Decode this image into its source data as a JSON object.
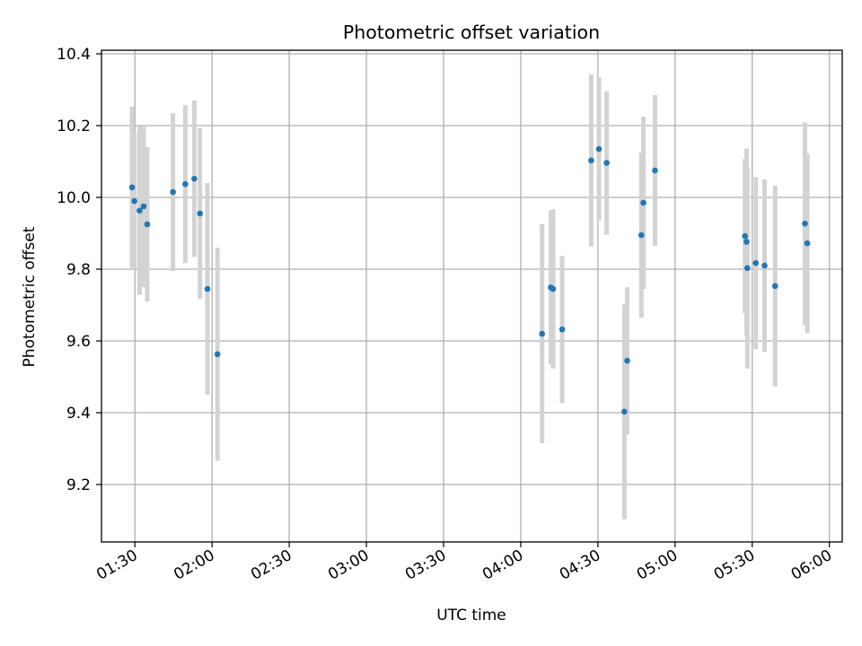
{
  "chart_data": {
    "type": "scatter",
    "title": "Photometric offset variation",
    "xlabel": "UTC time",
    "ylabel": "Photometric offset",
    "grid": true,
    "x_ticks": [
      "01:30",
      "02:00",
      "02:30",
      "03:00",
      "03:30",
      "04:00",
      "04:30",
      "05:00",
      "05:30",
      "06:00"
    ],
    "y_ticks": [
      "9.2",
      "9.4",
      "9.6",
      "9.8",
      "10.0",
      "10.2",
      "10.4"
    ],
    "xlim": [
      "01:17",
      "06:05"
    ],
    "ylim": [
      9.04,
      10.41
    ],
    "colors": {
      "points": "#1f77b4",
      "errorbars": "#d3d3d3",
      "grid": "#b0b0b0"
    },
    "series": [
      {
        "points": [
          {
            "x": "01:28:54",
            "y": 10.028,
            "err": 0.225
          },
          {
            "x": "01:29:48",
            "y": 9.99,
            "err": 0.19
          },
          {
            "x": "01:31:48",
            "y": 9.963,
            "err": 0.235
          },
          {
            "x": "01:33:24",
            "y": 9.975,
            "err": 0.225
          },
          {
            "x": "01:34:48",
            "y": 9.925,
            "err": 0.215
          },
          {
            "x": "01:44:48",
            "y": 10.015,
            "err": 0.22
          },
          {
            "x": "01:49:36",
            "y": 10.037,
            "err": 0.22
          },
          {
            "x": "01:53:06",
            "y": 10.052,
            "err": 0.218
          },
          {
            "x": "01:55:18",
            "y": 9.955,
            "err": 0.238
          },
          {
            "x": "01:58:12",
            "y": 9.745,
            "err": 0.295
          },
          {
            "x": "02:02:06",
            "y": 9.563,
            "err": 0.297
          },
          {
            "x": "04:08:18",
            "y": 9.62,
            "err": 0.305
          },
          {
            "x": "04:11:42",
            "y": 9.749,
            "err": 0.215
          },
          {
            "x": "04:12:36",
            "y": 9.745,
            "err": 0.222
          },
          {
            "x": "04:16:06",
            "y": 9.632,
            "err": 0.205
          },
          {
            "x": "04:27:24",
            "y": 10.103,
            "err": 0.24
          },
          {
            "x": "04:30:24",
            "y": 10.135,
            "err": 0.2
          },
          {
            "x": "04:33:24",
            "y": 10.096,
            "err": 0.2
          },
          {
            "x": "04:40:18",
            "y": 9.403,
            "err": 0.3
          },
          {
            "x": "04:41:24",
            "y": 9.545,
            "err": 0.205
          },
          {
            "x": "04:46:54",
            "y": 9.895,
            "err": 0.23
          },
          {
            "x": "04:47:42",
            "y": 9.985,
            "err": 0.24
          },
          {
            "x": "04:52:12",
            "y": 10.075,
            "err": 0.21
          },
          {
            "x": "05:27:12",
            "y": 9.892,
            "err": 0.215
          },
          {
            "x": "05:27:48",
            "y": 9.876,
            "err": 0.26
          },
          {
            "x": "05:28:06",
            "y": 9.803,
            "err": 0.28
          },
          {
            "x": "05:31:24",
            "y": 9.817,
            "err": 0.24
          },
          {
            "x": "05:34:48",
            "y": 9.81,
            "err": 0.24
          },
          {
            "x": "05:38:54",
            "y": 9.753,
            "err": 0.28
          },
          {
            "x": "05:50:30",
            "y": 9.927,
            "err": 0.282
          },
          {
            "x": "05:51:24",
            "y": 9.872,
            "err": 0.25
          }
        ]
      }
    ]
  }
}
